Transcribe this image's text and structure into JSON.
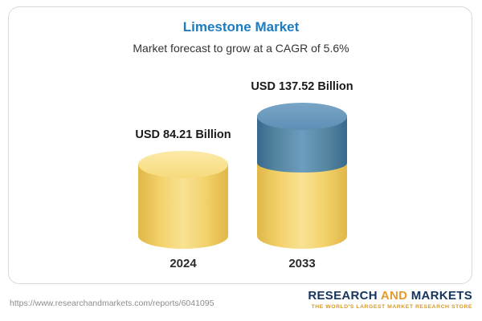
{
  "card": {
    "title": "Limestone Market",
    "subtitle": "Market forecast to grow at a CAGR of 5.6%"
  },
  "chart_data": {
    "type": "bar",
    "title": "Limestone Market",
    "subtitle": "Market forecast to grow at a CAGR of 5.6%",
    "cagr_percent": 5.6,
    "unit": "USD Billion",
    "categories": [
      "2024",
      "2033"
    ],
    "values": [
      84.21,
      137.52
    ],
    "value_labels": [
      "USD 84.21 Billion",
      "USD 137.52 Billion"
    ],
    "ylim": [
      0,
      150
    ],
    "legend": "none",
    "grid": false,
    "colors": {
      "base_segment": "#f3d26b",
      "growth_segment": "#5d8fb5",
      "title_text": "#1c7cc0"
    }
  },
  "footer": {
    "url": "https://www.researchandmarkets.com/reports/6041095",
    "logo": {
      "word1": "RESEARCH",
      "word2": "AND",
      "word3": "MARKETS",
      "tagline": "THE WORLD'S LARGEST MARKET RESEARCH STORE"
    }
  }
}
